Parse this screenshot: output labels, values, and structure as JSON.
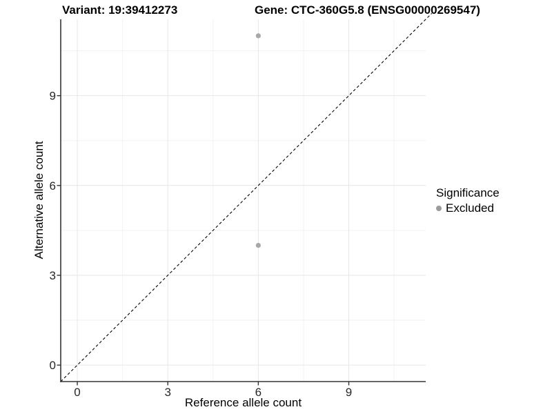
{
  "chart_data": {
    "type": "scatter",
    "title_left": "Variant: 19:39412273",
    "title_right": "Gene: CTC-360G5.8 (ENSG00000269547)",
    "xlabel": "Reference allele count",
    "ylabel": "Alternative allele count",
    "xlim": [
      -0.55,
      11.55
    ],
    "ylim": [
      -0.55,
      11.55
    ],
    "x_ticks": [
      0,
      3,
      6,
      9
    ],
    "y_ticks": [
      0,
      3,
      6,
      9
    ],
    "x_minor_ticks": [
      1.5,
      4.5,
      7.5,
      10.5
    ],
    "y_minor_ticks": [
      1.5,
      4.5,
      7.5,
      10.5
    ],
    "grid": true,
    "legend_position": "right",
    "series": [
      {
        "name": "Excluded",
        "color": "#A8A8A8",
        "points": [
          [
            6,
            11
          ],
          [
            6,
            4
          ]
        ]
      }
    ],
    "identity_line": {
      "slope": 1,
      "intercept": 0,
      "style": "dashed",
      "color": "#000000"
    },
    "legend": {
      "title": "Significance",
      "entries": [
        {
          "label": "Excluded",
          "color": "#9C9C9C"
        }
      ]
    }
  },
  "colors": {
    "background": "#ffffff",
    "axis_line": "#333333",
    "tick_label": "#262626",
    "grid_major": "#E6E6E6",
    "grid_minor": "#F2F2F2",
    "point": "#A8A8A8",
    "legend_dot": "#9C9C9C"
  }
}
